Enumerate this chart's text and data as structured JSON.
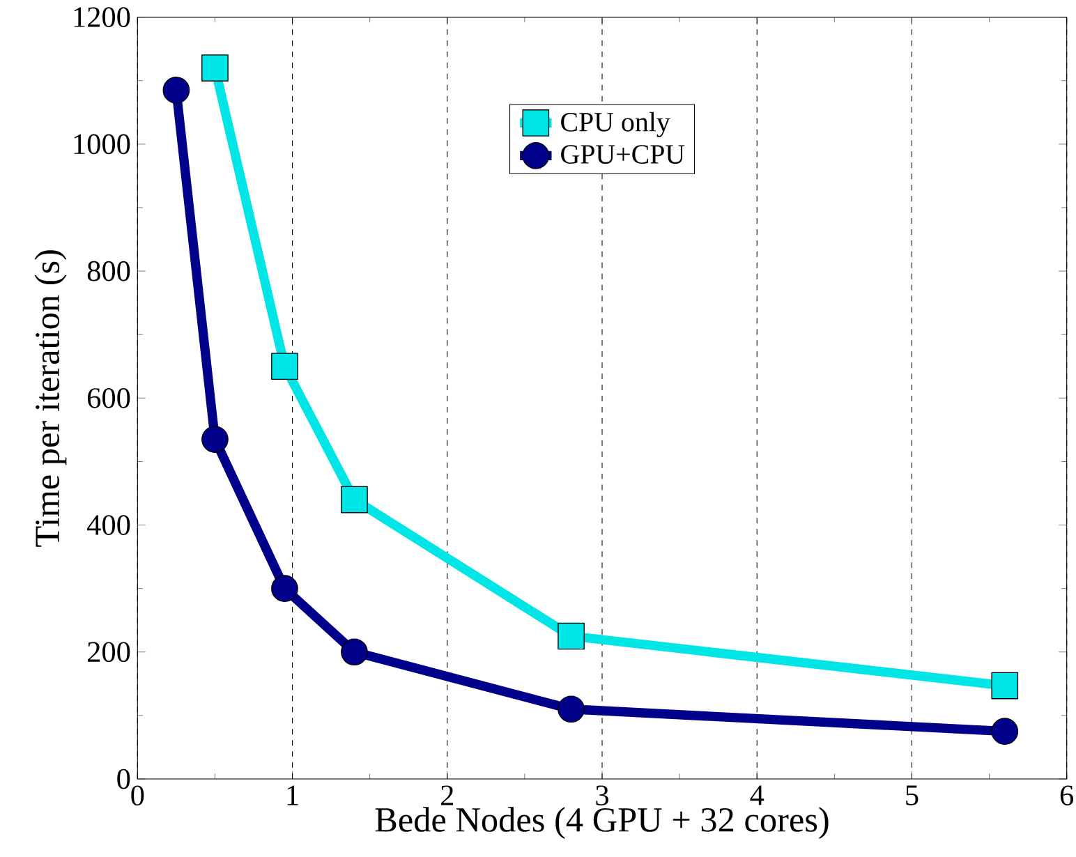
{
  "chart_data": {
    "type": "line",
    "xlabel": "Bede Nodes (4 GPU + 32 cores)",
    "ylabel": "Time per iteration (s)",
    "x": [
      0.25,
      0.5,
      0.95,
      1.4,
      2.8,
      5.6
    ],
    "series": [
      {
        "name": "CPU only",
        "color": "#00e5e5",
        "marker": "square",
        "values": [
          null,
          1120,
          650,
          440,
          225,
          147
        ]
      },
      {
        "name": "GPU+CPU",
        "color": "#00008b",
        "marker": "circle",
        "values": [
          1085,
          535,
          300,
          200,
          110,
          75
        ]
      }
    ],
    "xlim": [
      0,
      6
    ],
    "ylim": [
      0,
      1200
    ],
    "xticks": [
      0,
      1,
      2,
      3,
      4,
      5,
      6
    ],
    "yticks": [
      0,
      200,
      400,
      600,
      800,
      1000,
      1200
    ],
    "grid": "x",
    "legend": "top",
    "line_style": "solid"
  }
}
